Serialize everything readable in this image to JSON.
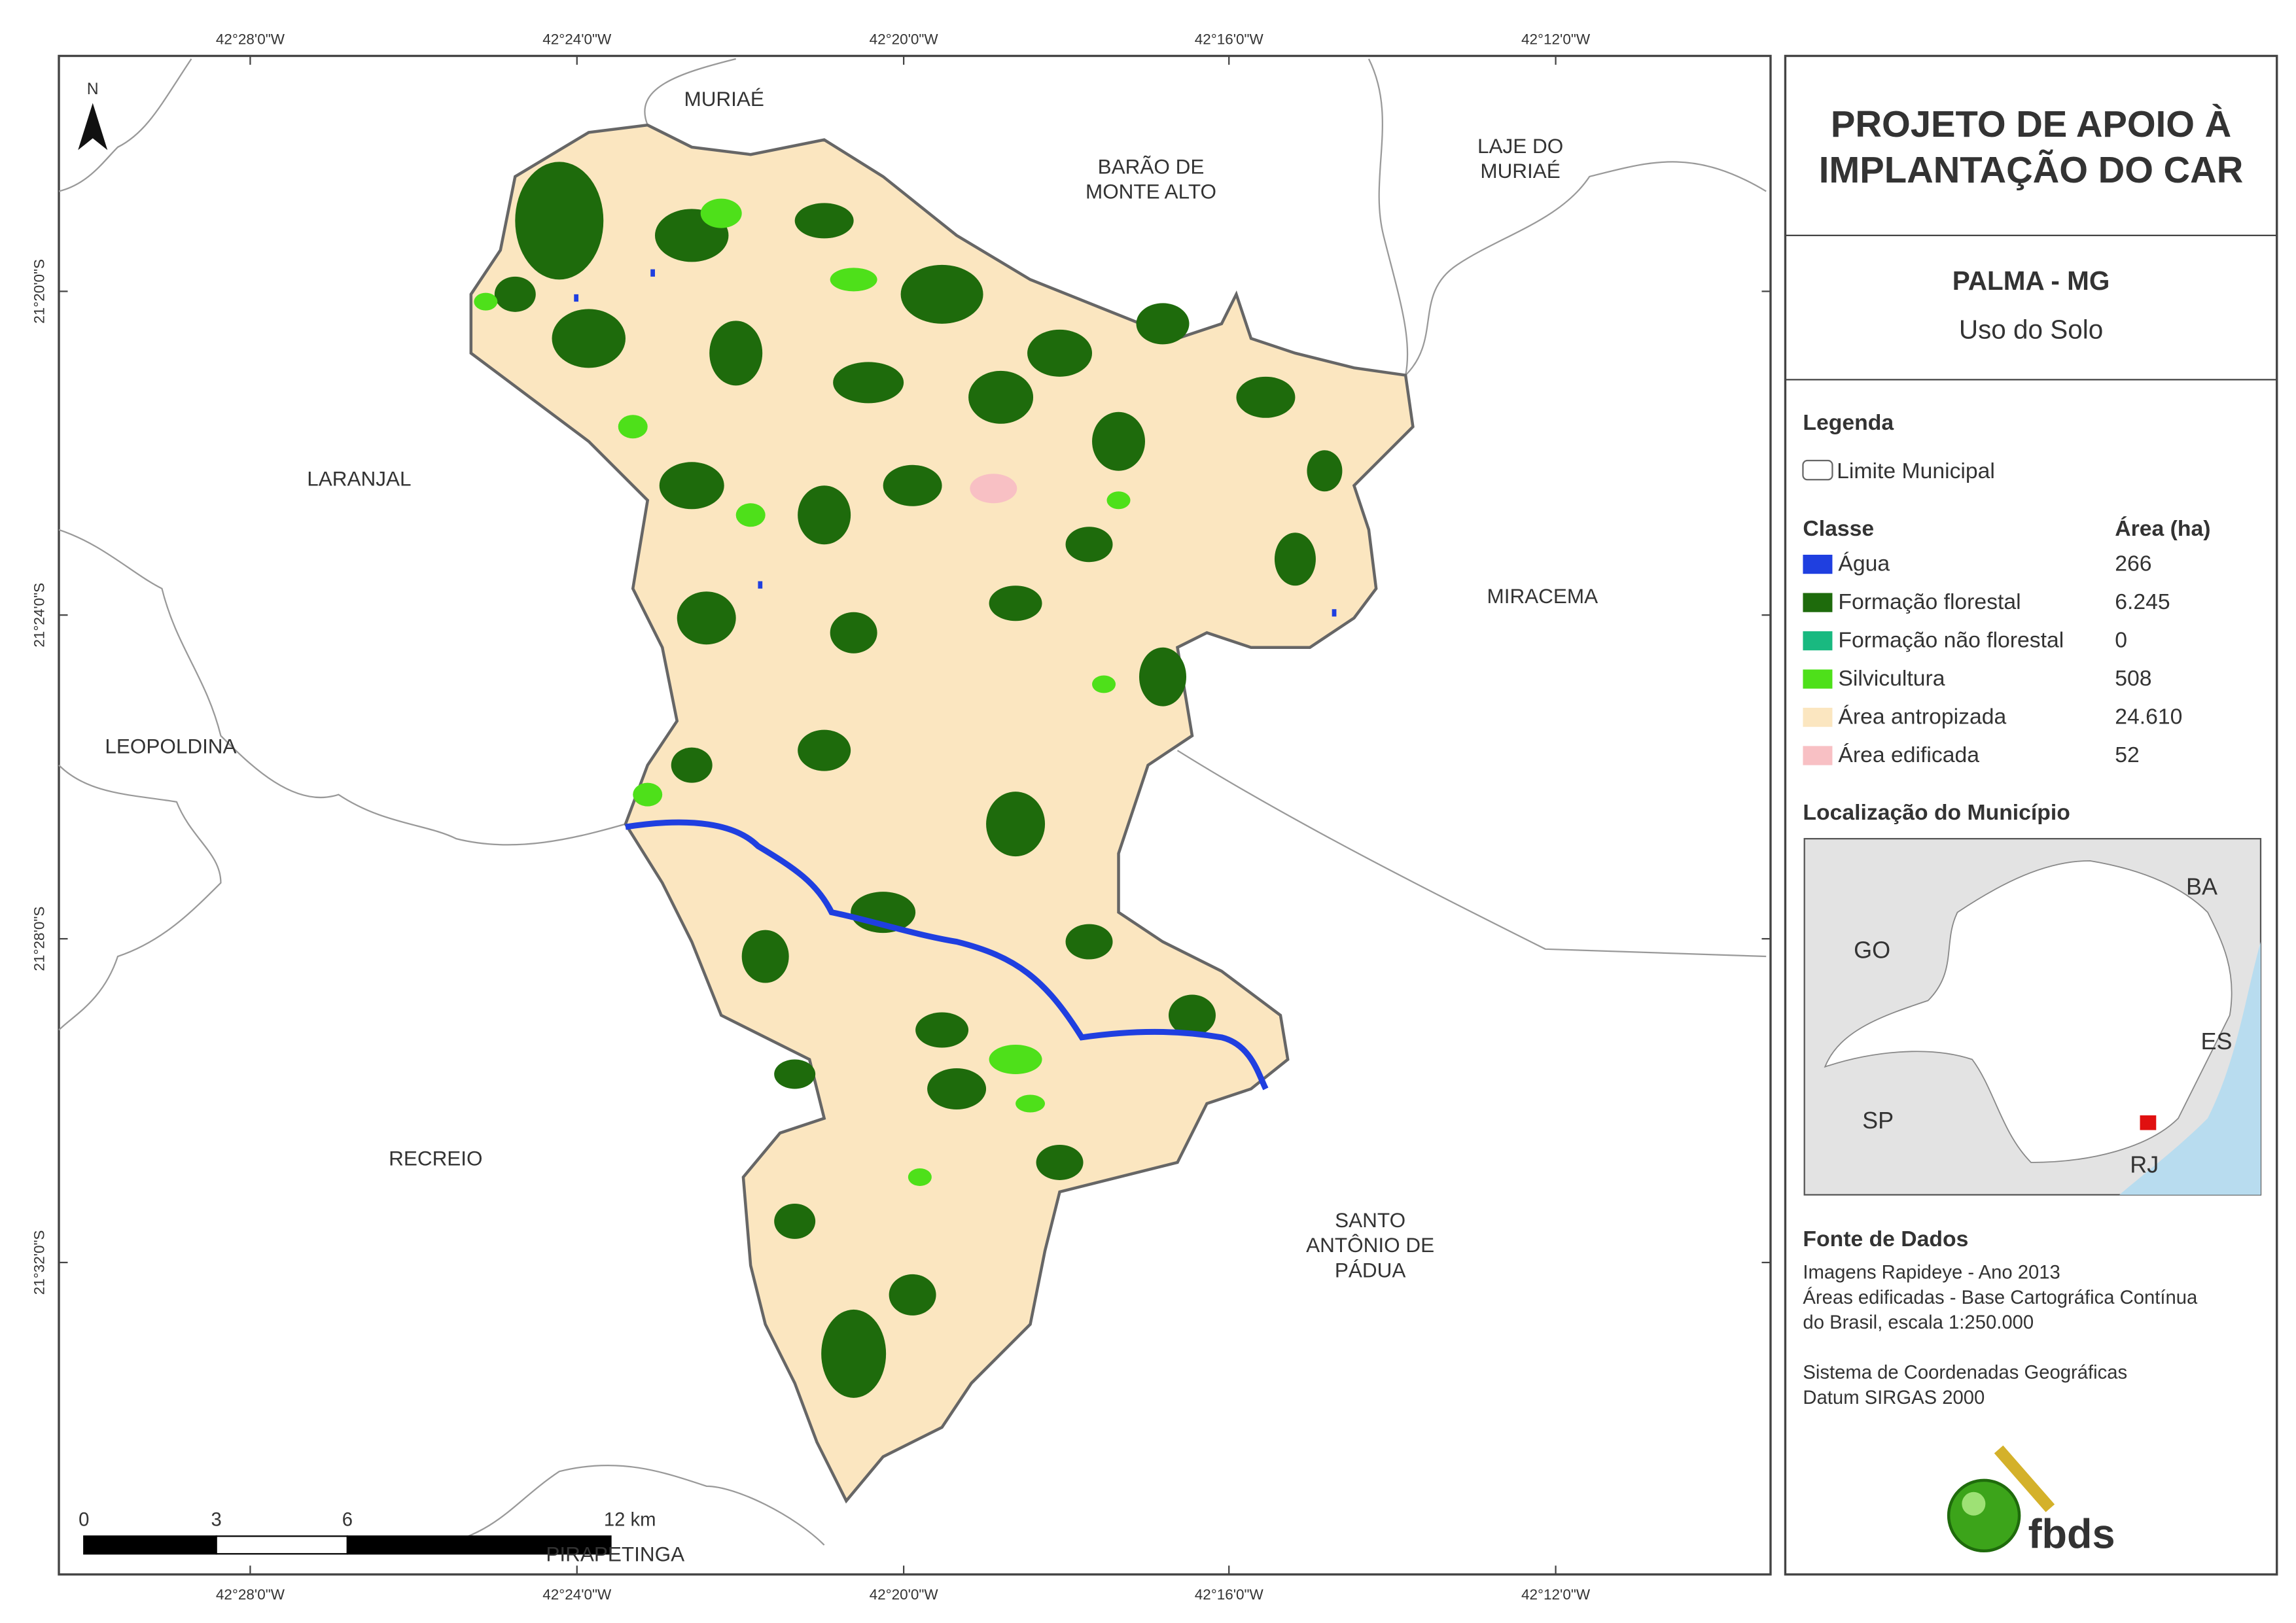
{
  "map": {
    "lon_ticks": [
      "42°28'0\"W",
      "42°24'0\"W",
      "42°20'0\"W",
      "42°16'0\"W",
      "42°12'0\"W"
    ],
    "lat_ticks": [
      "21°20'0\"S",
      "21°24'0\"S",
      "21°28'0\"S",
      "21°32'0\"S"
    ],
    "north": "N",
    "places": [
      {
        "lines": [
          "MURIAÉ"
        ]
      },
      {
        "lines": [
          "BARÃO DE",
          "MONTE ALTO"
        ]
      },
      {
        "lines": [
          "LAJE DO",
          "MURIAÉ"
        ]
      },
      {
        "lines": [
          "LARANJAL"
        ]
      },
      {
        "lines": [
          "MIRACEMA"
        ]
      },
      {
        "lines": [
          "LEOPOLDINA"
        ]
      },
      {
        "lines": [
          "RECREIO"
        ]
      },
      {
        "lines": [
          "SANTO",
          "ANTÔNIO DE",
          "PÁDUA"
        ]
      },
      {
        "lines": [
          "PIRAPETINGA"
        ]
      }
    ],
    "scale": [
      "0",
      "3",
      "6",
      "12 km"
    ]
  },
  "panel": {
    "title": [
      "PROJETO DE APOIO À",
      "IMPLANTAÇÃO DO CAR"
    ],
    "municipality": "PALMA - MG",
    "subtitle": "Uso do Solo",
    "legend_title": "Legenda",
    "boundary": "Limite Municipal",
    "class_header": "Classe",
    "area_header": "Área (ha)",
    "classes": [
      {
        "name": "Água",
        "area": "266",
        "color": "#1f3fe0"
      },
      {
        "name": "Formação florestal",
        "area": "6.245",
        "color": "#1e6b0c"
      },
      {
        "name": "Formação não florestal",
        "area": "0",
        "color": "#19b980"
      },
      {
        "name": "Silvicultura",
        "area": "508",
        "color": "#4ee01a"
      },
      {
        "name": "Área antropizada",
        "area": "24.610",
        "color": "#fbe6c0"
      },
      {
        "name": "Área edificada",
        "area": "52",
        "color": "#f8c0c4"
      }
    ],
    "location_title": "Localização do Município",
    "states": [
      "BA",
      "GO",
      "ES",
      "SP",
      "RJ"
    ],
    "source_title": "Fonte de Dados",
    "source_lines": [
      "Imagens Rapideye - Ano 2013",
      "Áreas edificadas - Base Cartográfica Contínua",
      "do Brasil, escala 1:250.000",
      "",
      "Sistema de Coordenadas Geográficas",
      "Datum SIRGAS 2000"
    ],
    "logo": "fbds"
  }
}
